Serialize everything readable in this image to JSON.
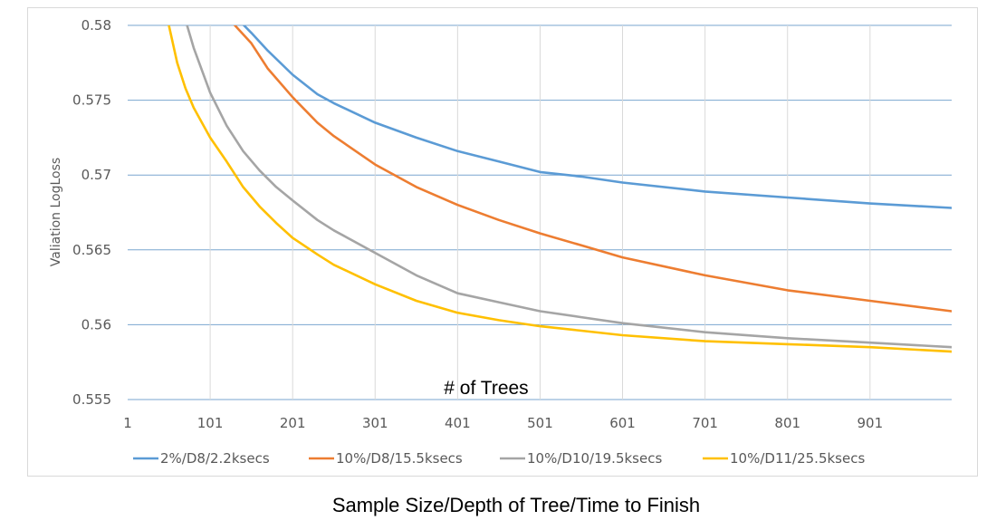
{
  "caption": "Sample Size/Depth of Tree/Time to Finish",
  "chart_data": {
    "type": "line",
    "title": "",
    "xlabel": "# of Trees",
    "ylabel": "Valiation LogLoss",
    "xlim": [
      1,
      1000
    ],
    "ylim": [
      0.555,
      0.58
    ],
    "x_ticks": [
      "1",
      "101",
      "201",
      "301",
      "401",
      "501",
      "601",
      "701",
      "801",
      "901"
    ],
    "y_ticks": [
      "0.555",
      "0.56",
      "0.565",
      "0.57",
      "0.575",
      "0.58"
    ],
    "grid": "horizontal and vertical",
    "legend_position": "bottom",
    "series": [
      {
        "name": "2%/D8/2.2ksecs",
        "color": "#5b9bd5",
        "x": [
          142,
          151,
          171,
          201,
          231,
          251,
          301,
          351,
          401,
          451,
          501,
          551,
          601,
          701,
          801,
          901,
          1000
        ],
        "y": [
          0.58,
          0.5795,
          0.5783,
          0.5767,
          0.5754,
          0.5748,
          0.5735,
          0.5725,
          0.5716,
          0.5709,
          0.5702,
          0.5699,
          0.5695,
          0.5689,
          0.5685,
          0.5681,
          0.5678
        ]
      },
      {
        "name": "10%/D8/15.5ksecs",
        "color": "#ed7d31",
        "x": [
          131,
          151,
          171,
          201,
          231,
          251,
          301,
          351,
          401,
          451,
          501,
          551,
          601,
          701,
          801,
          901,
          1000
        ],
        "y": [
          0.58,
          0.5788,
          0.5771,
          0.5752,
          0.5735,
          0.5726,
          0.5707,
          0.5692,
          0.568,
          0.567,
          0.5661,
          0.5653,
          0.5645,
          0.5633,
          0.5623,
          0.5616,
          0.5609
        ]
      },
      {
        "name": "10%/D10/19.5ksecs",
        "color": "#a5a5a5",
        "x": [
          73,
          81,
          101,
          121,
          141,
          161,
          181,
          201,
          231,
          251,
          301,
          351,
          401,
          451,
          501,
          551,
          601,
          701,
          801,
          901,
          1000
        ],
        "y": [
          0.58,
          0.5785,
          0.5755,
          0.5733,
          0.5716,
          0.5703,
          0.5692,
          0.5683,
          0.567,
          0.5663,
          0.5648,
          0.5633,
          0.5621,
          0.5615,
          0.5609,
          0.5605,
          0.5601,
          0.5595,
          0.5591,
          0.5588,
          0.5585
        ]
      },
      {
        "name": "10%/D11/25.5ksecs",
        "color": "#ffc000",
        "x": [
          51,
          61,
          71,
          81,
          101,
          121,
          141,
          161,
          181,
          201,
          231,
          251,
          301,
          351,
          401,
          451,
          501,
          551,
          601,
          701,
          801,
          901,
          1000
        ],
        "y": [
          0.58,
          0.5775,
          0.5758,
          0.5745,
          0.5725,
          0.5709,
          0.5692,
          0.5679,
          0.5668,
          0.5658,
          0.5647,
          0.564,
          0.5627,
          0.5616,
          0.5608,
          0.5603,
          0.5599,
          0.5596,
          0.5593,
          0.5589,
          0.5587,
          0.5585,
          0.5582
        ]
      }
    ]
  }
}
